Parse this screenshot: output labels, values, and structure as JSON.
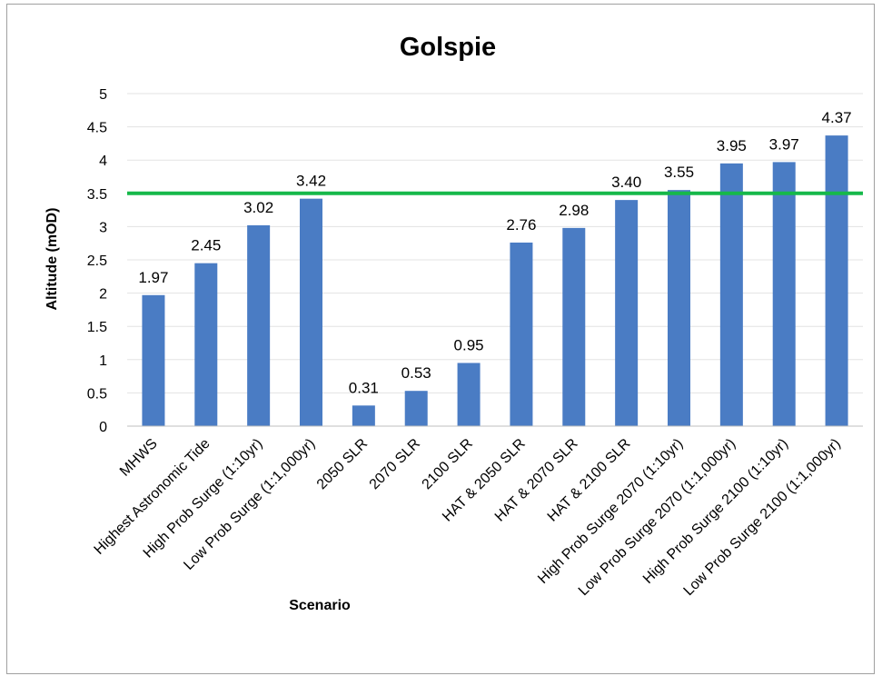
{
  "chart_data": {
    "type": "bar",
    "title": "Golspie",
    "xlabel": "Scenario",
    "ylabel": "Altitude (mOD)",
    "ylim": [
      0,
      5
    ],
    "yticks": [
      "0",
      "0.5",
      "1",
      "1.5",
      "2",
      "2.5",
      "3",
      "3.5",
      "4",
      "4.5",
      "5"
    ],
    "grid": true,
    "categories": [
      "MHWS",
      "Highest Astronomic Tide",
      "High Prob Surge (1:10yr)",
      "Low Prob Surge (1:1,000yr)",
      "2050 SLR",
      "2070 SLR",
      "2100 SLR",
      "HAT & 2050 SLR",
      "HAT & 2070 SLR",
      "HAT & 2100 SLR",
      "High Prob Surge 2070 (1:10yr)",
      "Low Prob Surge 2070 (1:1,000yr)",
      "High Prob Surge 2100 (1:10yr)",
      "Low Prob Surge 2100 (1:1,000yr)"
    ],
    "values": [
      1.97,
      2.45,
      3.02,
      3.42,
      0.31,
      0.53,
      0.95,
      2.76,
      2.98,
      3.4,
      3.55,
      3.95,
      3.97,
      4.37
    ],
    "data_labels": [
      "1.97",
      "2.45",
      "3.02",
      "3.42",
      "0.31",
      "0.53",
      "0.95",
      "2.76",
      "2.98",
      "3.40",
      "3.55",
      "3.95",
      "3.97",
      "4.37"
    ],
    "reference_line": {
      "value": 3.5,
      "color": "#16b84a"
    },
    "bar_color": "#4a7cc4"
  }
}
